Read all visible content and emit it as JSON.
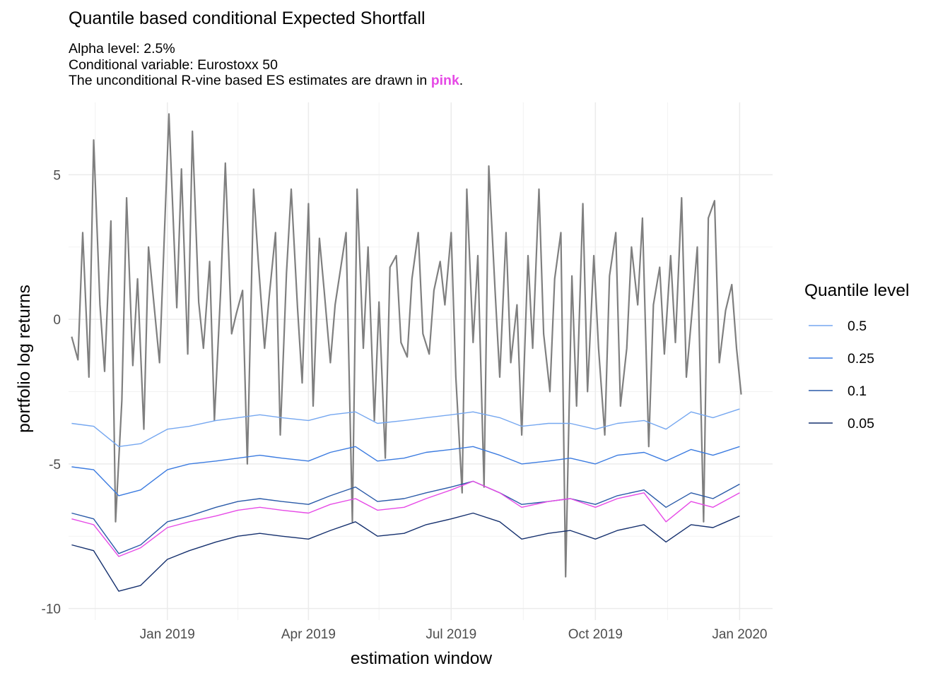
{
  "chart_data": {
    "type": "line",
    "title": "Quantile based conditional Expected Shortfall",
    "subtitle_lines": [
      "Alpha level: 2.5%",
      "Conditional variable: Eurostoxx 50"
    ],
    "subtitle_last_prefix": "The unconditional R-vine based ES estimates are drawn in ",
    "subtitle_last_highlight": "pink",
    "subtitle_last_suffix": ".",
    "xlabel": "estimation window",
    "ylabel": "portfolio log returns",
    "x_ticks": [
      "2019-01-01",
      "2019-04-01",
      "2019-07-01",
      "2019-10-01",
      "2020-01-01"
    ],
    "x_tick_labels": [
      "Jan 2019",
      "Apr 2019",
      "Jul 2019",
      "Oct 2019",
      "Jan 2020"
    ],
    "xlim": [
      "2018-10-30",
      "2020-01-22"
    ],
    "y_ticks": [
      -10,
      -5,
      0,
      5
    ],
    "y_tick_labels": [
      "-10",
      "-5",
      "0",
      "5"
    ],
    "ylim": [
      -10.4,
      7.5
    ],
    "grid": true,
    "legend": {
      "title": "Quantile level",
      "placement": "right"
    },
    "series": [
      {
        "name": "0.5",
        "color": "#75a7f0",
        "kind": "quantile",
        "x": [
          "2018-11-01",
          "2018-11-15",
          "2018-12-01",
          "2018-12-15",
          "2019-01-01",
          "2019-01-15",
          "2019-02-01",
          "2019-02-15",
          "2019-03-01",
          "2019-03-15",
          "2019-04-01",
          "2019-04-15",
          "2019-05-01",
          "2019-05-15",
          "2019-06-01",
          "2019-06-15",
          "2019-07-01",
          "2019-07-15",
          "2019-08-01",
          "2019-08-15",
          "2019-09-01",
          "2019-09-15",
          "2019-10-01",
          "2019-10-15",
          "2019-11-01",
          "2019-11-15",
          "2019-12-01",
          "2019-12-15",
          "2020-01-01"
        ],
        "values": [
          -3.6,
          -3.7,
          -4.4,
          -4.3,
          -3.8,
          -3.7,
          -3.5,
          -3.4,
          -3.3,
          -3.4,
          -3.5,
          -3.3,
          -3.2,
          -3.6,
          -3.5,
          -3.4,
          -3.3,
          -3.2,
          -3.4,
          -3.7,
          -3.6,
          -3.6,
          -3.8,
          -3.6,
          -3.5,
          -3.8,
          -3.2,
          -3.4,
          -3.1
        ]
      },
      {
        "name": "0.25",
        "color": "#3b7be0",
        "kind": "quantile",
        "x": [
          "2018-11-01",
          "2018-11-15",
          "2018-12-01",
          "2018-12-15",
          "2019-01-01",
          "2019-01-15",
          "2019-02-01",
          "2019-02-15",
          "2019-03-01",
          "2019-03-15",
          "2019-04-01",
          "2019-04-15",
          "2019-05-01",
          "2019-05-15",
          "2019-06-01",
          "2019-06-15",
          "2019-07-01",
          "2019-07-15",
          "2019-08-01",
          "2019-08-15",
          "2019-09-01",
          "2019-09-15",
          "2019-10-01",
          "2019-10-15",
          "2019-11-01",
          "2019-11-15",
          "2019-12-01",
          "2019-12-15",
          "2020-01-01"
        ],
        "values": [
          -5.1,
          -5.2,
          -6.1,
          -5.9,
          -5.2,
          -5.0,
          -4.9,
          -4.8,
          -4.7,
          -4.8,
          -4.9,
          -4.6,
          -4.4,
          -4.9,
          -4.8,
          -4.6,
          -4.5,
          -4.4,
          -4.7,
          -5.0,
          -4.9,
          -4.8,
          -5.0,
          -4.7,
          -4.6,
          -4.9,
          -4.5,
          -4.7,
          -4.4
        ]
      },
      {
        "name": "0.1",
        "color": "#2a5aa8",
        "kind": "quantile",
        "x": [
          "2018-11-01",
          "2018-11-15",
          "2018-12-01",
          "2018-12-15",
          "2019-01-01",
          "2019-01-15",
          "2019-02-01",
          "2019-02-15",
          "2019-03-01",
          "2019-03-15",
          "2019-04-01",
          "2019-04-15",
          "2019-05-01",
          "2019-05-15",
          "2019-06-01",
          "2019-06-15",
          "2019-07-01",
          "2019-07-15",
          "2019-08-01",
          "2019-08-15",
          "2019-09-01",
          "2019-09-15",
          "2019-10-01",
          "2019-10-15",
          "2019-11-01",
          "2019-11-15",
          "2019-12-01",
          "2019-12-15",
          "2020-01-01"
        ],
        "values": [
          -6.7,
          -6.9,
          -8.1,
          -7.8,
          -7.0,
          -6.8,
          -6.5,
          -6.3,
          -6.2,
          -6.3,
          -6.4,
          -6.1,
          -5.8,
          -6.3,
          -6.2,
          -6.0,
          -5.8,
          -5.6,
          -6.0,
          -6.4,
          -6.3,
          -6.2,
          -6.4,
          -6.1,
          -5.9,
          -6.5,
          -6.0,
          -6.2,
          -5.7
        ]
      },
      {
        "name": "0.05",
        "color": "#15306e",
        "kind": "quantile",
        "x": [
          "2018-11-01",
          "2018-11-15",
          "2018-12-01",
          "2018-12-15",
          "2019-01-01",
          "2019-01-15",
          "2019-02-01",
          "2019-02-15",
          "2019-03-01",
          "2019-03-15",
          "2019-04-01",
          "2019-04-15",
          "2019-05-01",
          "2019-05-15",
          "2019-06-01",
          "2019-06-15",
          "2019-07-01",
          "2019-07-15",
          "2019-08-01",
          "2019-08-15",
          "2019-09-01",
          "2019-09-15",
          "2019-10-01",
          "2019-10-15",
          "2019-11-01",
          "2019-11-15",
          "2019-12-01",
          "2019-12-15",
          "2020-01-01"
        ],
        "values": [
          -7.8,
          -8.0,
          -9.4,
          -9.2,
          -8.3,
          -8.0,
          -7.7,
          -7.5,
          -7.4,
          -7.5,
          -7.6,
          -7.3,
          -7.0,
          -7.5,
          -7.4,
          -7.1,
          -6.9,
          -6.7,
          -7.0,
          -7.6,
          -7.4,
          -7.3,
          -7.6,
          -7.3,
          -7.1,
          -7.7,
          -7.1,
          -7.2,
          -6.8
        ]
      },
      {
        "name": "",
        "color": "#e64ae6",
        "kind": "unconditional",
        "x": [
          "2018-11-01",
          "2018-11-15",
          "2018-12-01",
          "2018-12-15",
          "2019-01-01",
          "2019-01-15",
          "2019-02-01",
          "2019-02-15",
          "2019-03-01",
          "2019-03-15",
          "2019-04-01",
          "2019-04-15",
          "2019-05-01",
          "2019-05-15",
          "2019-06-01",
          "2019-06-15",
          "2019-07-01",
          "2019-07-15",
          "2019-08-01",
          "2019-08-15",
          "2019-09-01",
          "2019-09-15",
          "2019-10-01",
          "2019-10-15",
          "2019-11-01",
          "2019-11-15",
          "2019-12-01",
          "2019-12-15",
          "2020-01-01"
        ],
        "values": [
          -6.9,
          -7.1,
          -8.2,
          -7.9,
          -7.2,
          -7.0,
          -6.8,
          -6.6,
          -6.5,
          -6.6,
          -6.7,
          -6.4,
          -6.2,
          -6.6,
          -6.5,
          -6.2,
          -5.9,
          -5.6,
          -6.0,
          -6.5,
          -6.3,
          -6.2,
          -6.5,
          -6.2,
          -6.0,
          -7.0,
          -6.3,
          -6.5,
          -6.0
        ]
      },
      {
        "name": "",
        "color": "#7f7f7f",
        "kind": "returns",
        "x": [
          "2018-11-01",
          "2018-11-05",
          "2018-11-08",
          "2018-11-12",
          "2018-11-15",
          "2018-11-19",
          "2018-11-22",
          "2018-11-26",
          "2018-11-29",
          "2018-12-03",
          "2018-12-06",
          "2018-12-10",
          "2018-12-13",
          "2018-12-17",
          "2018-12-20",
          "2018-12-27",
          "2019-01-02",
          "2019-01-07",
          "2019-01-10",
          "2019-01-14",
          "2019-01-17",
          "2019-01-21",
          "2019-01-24",
          "2019-01-28",
          "2019-01-31",
          "2019-02-04",
          "2019-02-07",
          "2019-02-11",
          "2019-02-14",
          "2019-02-18",
          "2019-02-21",
          "2019-02-25",
          "2019-02-28",
          "2019-03-04",
          "2019-03-07",
          "2019-03-11",
          "2019-03-14",
          "2019-03-18",
          "2019-03-21",
          "2019-03-25",
          "2019-03-28",
          "2019-04-01",
          "2019-04-04",
          "2019-04-08",
          "2019-04-11",
          "2019-04-15",
          "2019-04-18",
          "2019-04-25",
          "2019-04-29",
          "2019-05-02",
          "2019-05-06",
          "2019-05-09",
          "2019-05-13",
          "2019-05-16",
          "2019-05-20",
          "2019-05-23",
          "2019-05-27",
          "2019-05-30",
          "2019-06-03",
          "2019-06-06",
          "2019-06-10",
          "2019-06-13",
          "2019-06-17",
          "2019-06-20",
          "2019-06-24",
          "2019-06-27",
          "2019-07-01",
          "2019-07-04",
          "2019-07-08",
          "2019-07-11",
          "2019-07-15",
          "2019-07-18",
          "2019-07-22",
          "2019-07-25",
          "2019-07-29",
          "2019-08-01",
          "2019-08-05",
          "2019-08-08",
          "2019-08-12",
          "2019-08-15",
          "2019-08-19",
          "2019-08-22",
          "2019-08-26",
          "2019-08-29",
          "2019-09-02",
          "2019-09-05",
          "2019-09-09",
          "2019-09-12",
          "2019-09-16",
          "2019-09-19",
          "2019-09-23",
          "2019-09-26",
          "2019-09-30",
          "2019-10-03",
          "2019-10-07",
          "2019-10-10",
          "2019-10-14",
          "2019-10-17",
          "2019-10-21",
          "2019-10-24",
          "2019-10-28",
          "2019-10-31",
          "2019-11-04",
          "2019-11-07",
          "2019-11-11",
          "2019-11-14",
          "2019-11-18",
          "2019-11-21",
          "2019-11-25",
          "2019-11-28",
          "2019-12-02",
          "2019-12-05",
          "2019-12-09",
          "2019-12-12",
          "2019-12-16",
          "2019-12-19",
          "2019-12-23",
          "2019-12-27",
          "2019-12-30",
          "2020-01-02"
        ],
        "values": [
          -0.6,
          -1.4,
          3.0,
          -2.0,
          6.2,
          0.5,
          -1.8,
          3.4,
          -7.0,
          -2.8,
          4.2,
          -1.6,
          1.4,
          -3.8,
          2.5,
          -1.5,
          7.1,
          0.4,
          5.2,
          -1.2,
          6.5,
          0.6,
          -1.0,
          2.0,
          -3.5,
          1.0,
          5.4,
          -0.5,
          0.2,
          1.0,
          -5.0,
          4.5,
          2.0,
          -1.0,
          0.8,
          3.0,
          -4.0,
          1.6,
          4.5,
          0.4,
          -2.2,
          4.0,
          -3.0,
          2.8,
          1.0,
          -1.5,
          0.5,
          3.0,
          -7.0,
          4.5,
          -1.0,
          2.5,
          -3.5,
          0.6,
          -4.8,
          1.8,
          2.2,
          -0.8,
          -1.3,
          1.4,
          3.0,
          -0.5,
          -1.2,
          1.0,
          2.0,
          0.5,
          3.0,
          -2.0,
          -6.0,
          4.5,
          -0.8,
          2.2,
          -5.8,
          5.3,
          1.0,
          -2.0,
          3.0,
          -1.5,
          0.5,
          -4.0,
          2.2,
          -1.0,
          4.5,
          -0.5,
          -2.5,
          1.4,
          3.0,
          -8.9,
          1.5,
          -3.0,
          4.0,
          -2.5,
          2.2,
          -1.0,
          -4.0,
          1.5,
          3.0,
          -3.0,
          -1.0,
          2.5,
          0.5,
          3.5,
          -4.4,
          0.5,
          1.8,
          -1.2,
          2.2,
          -0.8,
          4.2,
          -2.0,
          0.5,
          2.5,
          -7.0,
          3.5,
          4.1,
          -1.5,
          0.3,
          1.2,
          -1.0,
          -2.6
        ]
      }
    ]
  }
}
